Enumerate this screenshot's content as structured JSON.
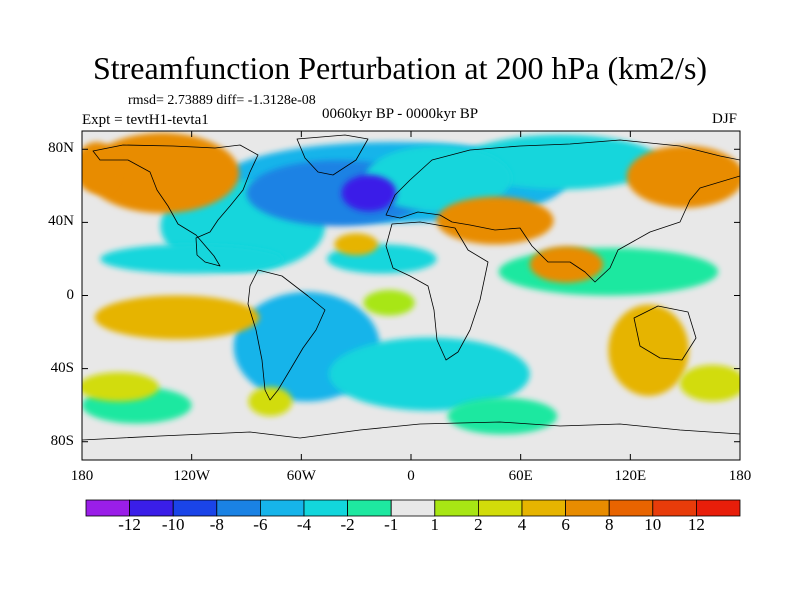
{
  "title": "Streamfunction Perturbation at 200 hPa (km2/s)",
  "stats": "rmsd= 2.73889 diff= -1.3128e-08",
  "experiment": "Expt = tevtH1-tevta1",
  "period": "0060kyr BP - 0000kyr BP",
  "season": "DJF",
  "chart_data": {
    "type": "heatmap",
    "title": "Streamfunction Perturbation at 200 hPa (km2/s)",
    "variable": "Streamfunction Perturbation",
    "units": "km2/s",
    "level": "200 hPa",
    "projection": "cylindrical equidistant",
    "x_range": [
      -180,
      180
    ],
    "y_range": [
      -90,
      90
    ],
    "x_ticks": [
      -180,
      -120,
      -60,
      0,
      60,
      120,
      180
    ],
    "x_tick_labels": [
      "180",
      "120W",
      "60W",
      "0",
      "60E",
      "120E",
      "180"
    ],
    "y_ticks": [
      80,
      40,
      0,
      -40,
      -80
    ],
    "y_tick_labels": [
      "80N",
      "40N",
      "0",
      "40S",
      "80S"
    ],
    "colorbar": {
      "labels": [
        "-12",
        "-10",
        "-8",
        "-6",
        "-4",
        "-2",
        "-1",
        "1",
        "2",
        "4",
        "6",
        "8",
        "10",
        "12"
      ],
      "levels": [
        -12,
        -10,
        -8,
        -6,
        -4,
        -2,
        -1,
        1,
        2,
        4,
        6,
        8,
        10,
        12
      ],
      "colors": [
        "#9a1ee8",
        "#3a1ee8",
        "#1a44e8",
        "#1a82e4",
        "#16b4ea",
        "#12d6dc",
        "#1ee8a0",
        "#e8e8e8",
        "#a8e614",
        "#d2dc0a",
        "#e6b400",
        "#e88c00",
        "#e86400",
        "#e83c0a",
        "#e81e0a"
      ]
    },
    "features": [
      {
        "lon": -23,
        "lat": 56,
        "rx": 15,
        "ry": 10,
        "value": -11
      },
      {
        "lon": -40,
        "lat": 56,
        "rx": 50,
        "ry": 18,
        "value": -8
      },
      {
        "lon": -10,
        "lat": 62,
        "rx": 95,
        "ry": 22,
        "value": -5
      },
      {
        "lon": 15,
        "lat": 64,
        "rx": 40,
        "ry": 18,
        "value": -4
      },
      {
        "lon": 82,
        "lat": 73,
        "rx": 55,
        "ry": 15,
        "value": -4
      },
      {
        "lon": -92,
        "lat": 38,
        "rx": 45,
        "ry": 25,
        "value": -4
      },
      {
        "lon": -120,
        "lat": 20,
        "rx": 50,
        "ry": 8,
        "value": -3
      },
      {
        "lon": -16,
        "lat": 20,
        "rx": 30,
        "ry": 8,
        "value": -3
      },
      {
        "lon": 108,
        "lat": 13,
        "rx": 60,
        "ry": 13,
        "value": -2
      },
      {
        "lon": -57,
        "lat": -28,
        "rx": 40,
        "ry": 30,
        "value": -5
      },
      {
        "lon": 10,
        "lat": -43,
        "rx": 55,
        "ry": 20,
        "value": -4
      },
      {
        "lon": -150,
        "lat": -60,
        "rx": 30,
        "ry": 10,
        "value": -2
      },
      {
        "lon": 50,
        "lat": -66,
        "rx": 30,
        "ry": 10,
        "value": -1.5
      },
      {
        "lon": -136,
        "lat": 67,
        "rx": 42,
        "ry": 22,
        "value": 7
      },
      {
        "lon": -172,
        "lat": 70,
        "rx": 12,
        "ry": 14,
        "value": 6
      },
      {
        "lon": 46,
        "lat": 41,
        "rx": 32,
        "ry": 13,
        "value": 7
      },
      {
        "lon": 85,
        "lat": 17,
        "rx": 20,
        "ry": 10,
        "value": 6
      },
      {
        "lon": 150,
        "lat": 65,
        "rx": 32,
        "ry": 17,
        "value": 6
      },
      {
        "lon": -30,
        "lat": 28,
        "rx": 12,
        "ry": 6,
        "value": 4
      },
      {
        "lon": -128,
        "lat": -12,
        "rx": 45,
        "ry": 12,
        "value": 5
      },
      {
        "lon": 130,
        "lat": -30,
        "rx": 22,
        "ry": 25,
        "value": 4
      },
      {
        "lon": -12,
        "lat": -4,
        "rx": 14,
        "ry": 7,
        "value": 1.5
      },
      {
        "lon": -160,
        "lat": -50,
        "rx": 22,
        "ry": 8,
        "value": 2
      },
      {
        "lon": -77,
        "lat": -58,
        "rx": 12,
        "ry": 8,
        "value": 2
      },
      {
        "lon": 165,
        "lat": -48,
        "rx": 18,
        "ry": 10,
        "value": 2
      }
    ]
  }
}
